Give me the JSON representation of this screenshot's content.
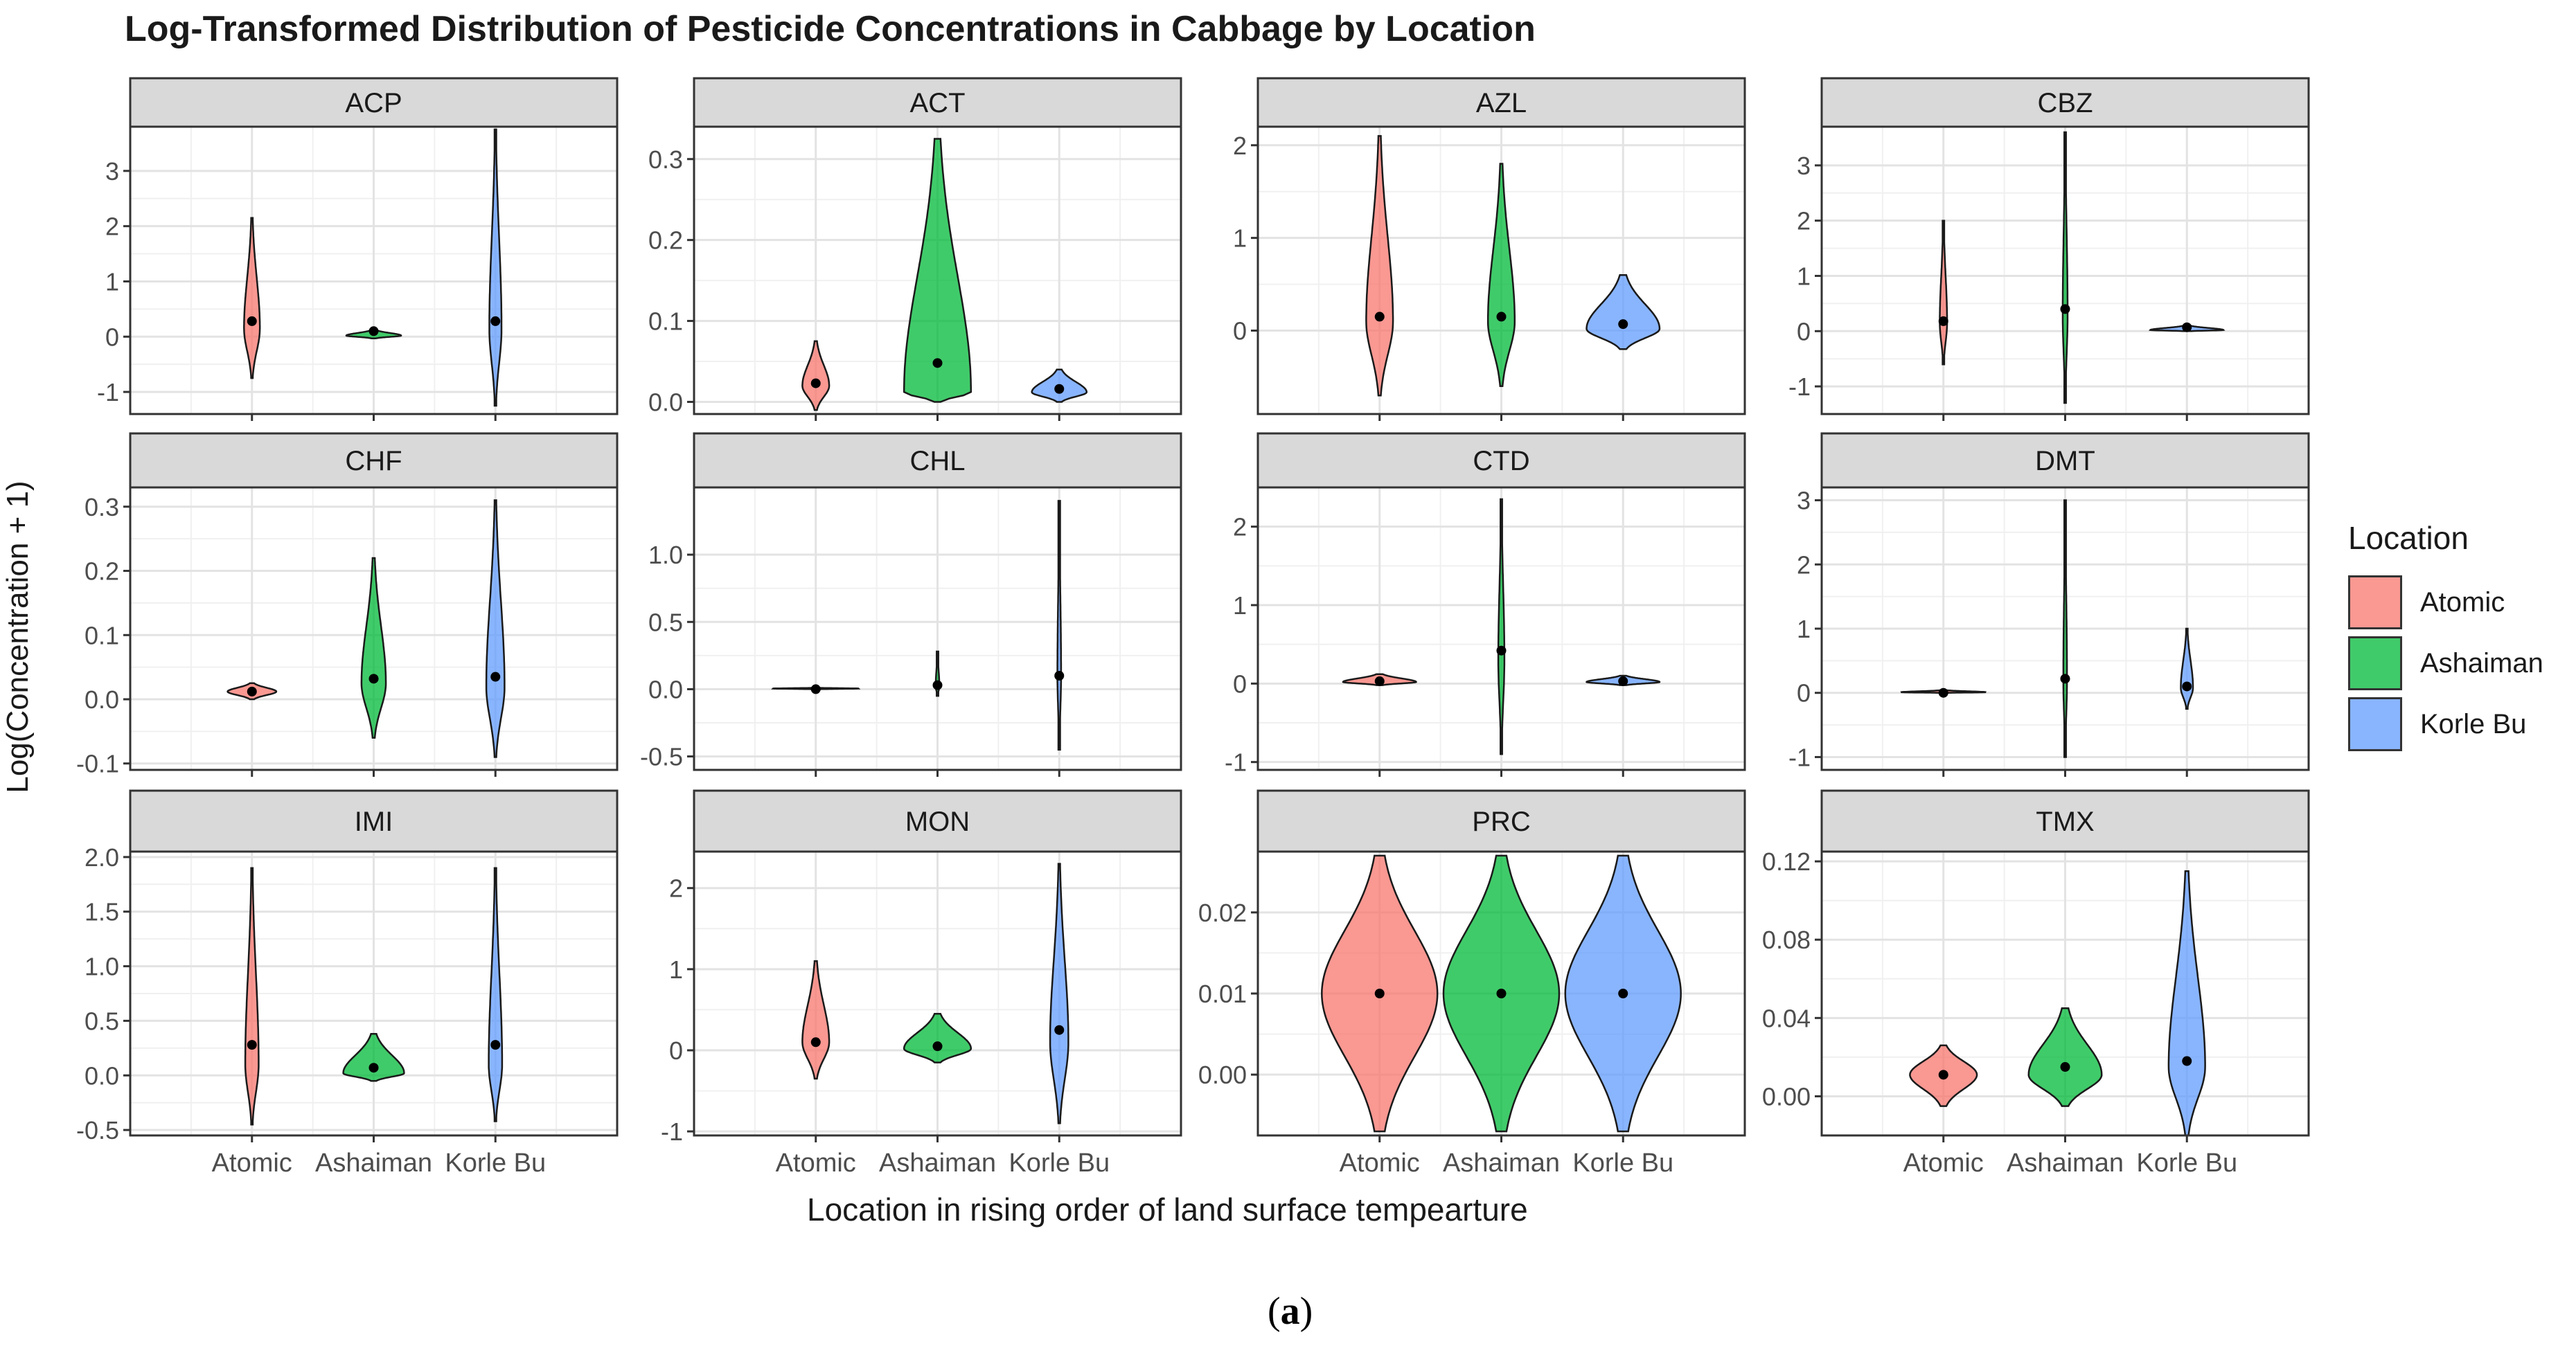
{
  "chart_data": {
    "type": "violin",
    "title": "Log-Transformed Distribution of Pesticide Concentrations in Cabbage by Location",
    "xlabel": "Location in rising order of land surface tempearture",
    "ylabel": "Log(Concentration + 1)",
    "caption": "(a)",
    "caption_letter": "a",
    "legend": {
      "title": "Location",
      "placement": "right",
      "entries": [
        {
          "name": "Atomic",
          "color": "#f8766d"
        },
        {
          "name": "Ashaiman",
          "color": "#00ba38"
        },
        {
          "name": "Korle Bu",
          "color": "#619cff"
        }
      ]
    },
    "categories": [
      "Atomic",
      "Ashaiman",
      "Korle Bu"
    ],
    "panels": [
      {
        "name": "ACP",
        "ylim": [
          -1.4,
          3.8
        ],
        "ticks": [
          -1,
          0,
          1,
          2,
          3
        ],
        "tick_labels": [
          "-1",
          "0",
          "1",
          "2",
          "3"
        ],
        "violins": [
          {
            "location": "Atomic",
            "min": -0.75,
            "max": 2.15,
            "peak": 0.15,
            "median": 0.28,
            "max_width": 0.13
          },
          {
            "location": "Ashaiman",
            "min": -0.03,
            "max": 0.12,
            "peak": 0.02,
            "median": 0.1,
            "max_width": 0.45
          },
          {
            "location": "Korle Bu",
            "min": -1.25,
            "max": 3.75,
            "peak": 0.15,
            "median": 0.28,
            "max_width": 0.1
          }
        ]
      },
      {
        "name": "ACT",
        "ylim": [
          -0.015,
          0.34
        ],
        "ticks": [
          0.0,
          0.1,
          0.2,
          0.3
        ],
        "tick_labels": [
          "0.0",
          "0.1",
          "0.2",
          "0.3"
        ],
        "violins": [
          {
            "location": "Atomic",
            "min": -0.01,
            "max": 0.075,
            "peak": 0.02,
            "median": 0.023,
            "max_width": 0.22
          },
          {
            "location": "Ashaiman",
            "min": 0.0,
            "max": 0.325,
            "peak": 0.012,
            "median": 0.048,
            "max_width": 0.55
          },
          {
            "location": "Korle Bu",
            "min": 0.0,
            "max": 0.04,
            "peak": 0.012,
            "median": 0.016,
            "max_width": 0.45
          }
        ]
      },
      {
        "name": "AZL",
        "ylim": [
          -0.9,
          2.2
        ],
        "ticks": [
          0,
          1,
          2
        ],
        "tick_labels": [
          "0",
          "1",
          "2"
        ],
        "violins": [
          {
            "location": "Atomic",
            "min": -0.7,
            "max": 2.1,
            "peak": 0.1,
            "median": 0.15,
            "max_width": 0.22
          },
          {
            "location": "Ashaiman",
            "min": -0.6,
            "max": 1.8,
            "peak": 0.1,
            "median": 0.15,
            "max_width": 0.22
          },
          {
            "location": "Korle Bu",
            "min": -0.2,
            "max": 0.6,
            "peak": 0.02,
            "median": 0.07,
            "max_width": 0.6
          }
        ]
      },
      {
        "name": "CBZ",
        "ylim": [
          -1.5,
          3.7
        ],
        "ticks": [
          -1,
          0,
          1,
          2,
          3
        ],
        "tick_labels": [
          "-1",
          "0",
          "1",
          "2",
          "3"
        ],
        "violins": [
          {
            "location": "Atomic",
            "min": -0.6,
            "max": 2.0,
            "peak": 0.15,
            "median": 0.18,
            "max_width": 0.06
          },
          {
            "location": "Ashaiman",
            "min": -1.3,
            "max": 3.6,
            "peak": 0.3,
            "median": 0.4,
            "max_width": 0.04
          },
          {
            "location": "Korle Bu",
            "min": 0.0,
            "max": 0.1,
            "peak": 0.02,
            "median": 0.07,
            "max_width": 0.6
          }
        ]
      },
      {
        "name": "CHF",
        "ylim": [
          -0.11,
          0.33
        ],
        "ticks": [
          -0.1,
          0.0,
          0.1,
          0.2,
          0.3
        ],
        "tick_labels": [
          "-0.1",
          "0.0",
          "0.1",
          "0.2",
          "0.3"
        ],
        "violins": [
          {
            "location": "Atomic",
            "min": 0.0,
            "max": 0.025,
            "peak": 0.012,
            "median": 0.012,
            "max_width": 0.4
          },
          {
            "location": "Ashaiman",
            "min": -0.06,
            "max": 0.22,
            "peak": 0.025,
            "median": 0.032,
            "max_width": 0.2
          },
          {
            "location": "Korle Bu",
            "min": -0.09,
            "max": 0.31,
            "peak": 0.02,
            "median": 0.035,
            "max_width": 0.15
          }
        ]
      },
      {
        "name": "CHL",
        "ylim": [
          -0.6,
          1.5
        ],
        "ticks": [
          -0.5,
          0.0,
          0.5,
          1.0
        ],
        "tick_labels": [
          "-0.5",
          "0.0",
          "0.5",
          "1.0"
        ],
        "violins": [
          {
            "location": "Atomic",
            "min": 0.0,
            "max": 0.01,
            "peak": 0.005,
            "median": 0.0,
            "max_width": 0.7
          },
          {
            "location": "Ashaiman",
            "min": -0.05,
            "max": 0.28,
            "peak": 0.02,
            "median": 0.03,
            "max_width": 0.03
          },
          {
            "location": "Korle Bu",
            "min": -0.45,
            "max": 1.4,
            "peak": 0.1,
            "median": 0.1,
            "max_width": 0.03
          }
        ]
      },
      {
        "name": "CTD",
        "ylim": [
          -1.1,
          2.5
        ],
        "ticks": [
          -1,
          0,
          1,
          2
        ],
        "tick_labels": [
          "-1",
          "0",
          "1",
          "2"
        ],
        "violins": [
          {
            "location": "Atomic",
            "min": -0.02,
            "max": 0.12,
            "peak": 0.02,
            "median": 0.03,
            "max_width": 0.6
          },
          {
            "location": "Ashaiman",
            "min": -0.9,
            "max": 2.35,
            "peak": 0.3,
            "median": 0.42,
            "max_width": 0.05
          },
          {
            "location": "Korle Bu",
            "min": -0.02,
            "max": 0.1,
            "peak": 0.02,
            "median": 0.03,
            "max_width": 0.6
          }
        ]
      },
      {
        "name": "DMT",
        "ylim": [
          -1.2,
          3.2
        ],
        "ticks": [
          -1,
          0,
          1,
          2,
          3
        ],
        "tick_labels": [
          "-1",
          "0",
          "1",
          "2",
          "3"
        ],
        "violins": [
          {
            "location": "Atomic",
            "min": 0.0,
            "max": 0.04,
            "peak": 0.01,
            "median": 0.0,
            "max_width": 0.7
          },
          {
            "location": "Ashaiman",
            "min": -1.0,
            "max": 3.0,
            "peak": 0.2,
            "median": 0.22,
            "max_width": 0.03
          },
          {
            "location": "Korle Bu",
            "min": -0.25,
            "max": 1.0,
            "peak": 0.08,
            "median": 0.1,
            "max_width": 0.1
          }
        ]
      },
      {
        "name": "IMI",
        "ylim": [
          -0.55,
          2.05
        ],
        "ticks": [
          -0.5,
          0.0,
          0.5,
          1.0,
          1.5,
          2.0
        ],
        "tick_labels": [
          "-0.5",
          "0.0",
          "0.5",
          "1.0",
          "1.5",
          "2.0"
        ],
        "violins": [
          {
            "location": "Atomic",
            "min": -0.45,
            "max": 1.9,
            "peak": 0.1,
            "median": 0.28,
            "max_width": 0.11
          },
          {
            "location": "Ashaiman",
            "min": -0.05,
            "max": 0.38,
            "peak": 0.02,
            "median": 0.07,
            "max_width": 0.5
          },
          {
            "location": "Korle Bu",
            "min": -0.42,
            "max": 1.9,
            "peak": 0.1,
            "median": 0.28,
            "max_width": 0.11
          }
        ]
      },
      {
        "name": "MON",
        "ylim": [
          -1.05,
          2.45
        ],
        "ticks": [
          -1,
          0,
          1,
          2
        ],
        "tick_labels": [
          "-1",
          "0",
          "1",
          "2"
        ],
        "violins": [
          {
            "location": "Atomic",
            "min": -0.35,
            "max": 1.1,
            "peak": 0.1,
            "median": 0.1,
            "max_width": 0.22
          },
          {
            "location": "Ashaiman",
            "min": -0.15,
            "max": 0.45,
            "peak": 0.02,
            "median": 0.05,
            "max_width": 0.55
          },
          {
            "location": "Korle Bu",
            "min": -0.9,
            "max": 2.3,
            "peak": 0.1,
            "median": 0.25,
            "max_width": 0.15
          }
        ]
      },
      {
        "name": "PRC",
        "ylim": [
          -0.0075,
          0.0275
        ],
        "ticks": [
          0.0,
          0.01,
          0.02
        ],
        "tick_labels": [
          "0.00",
          "0.01",
          "0.02"
        ],
        "violins": [
          {
            "location": "Atomic",
            "min": -0.007,
            "max": 0.027,
            "peak": 0.01,
            "median": 0.01,
            "max_width": 0.95
          },
          {
            "location": "Ashaiman",
            "min": -0.007,
            "max": 0.027,
            "peak": 0.01,
            "median": 0.01,
            "max_width": 0.95
          },
          {
            "location": "Korle Bu",
            "min": -0.007,
            "max": 0.027,
            "peak": 0.01,
            "median": 0.01,
            "max_width": 0.95
          }
        ]
      },
      {
        "name": "TMX",
        "ylim": [
          -0.02,
          0.125
        ],
        "ticks": [
          0.0,
          0.04,
          0.08,
          0.12
        ],
        "tick_labels": [
          "0.00",
          "0.04",
          "0.08",
          "0.12"
        ],
        "violins": [
          {
            "location": "Atomic",
            "min": -0.005,
            "max": 0.026,
            "peak": 0.011,
            "median": 0.011,
            "max_width": 0.55
          },
          {
            "location": "Ashaiman",
            "min": -0.005,
            "max": 0.045,
            "peak": 0.011,
            "median": 0.015,
            "max_width": 0.6
          },
          {
            "location": "Korle Bu",
            "min": -0.02,
            "max": 0.115,
            "peak": 0.015,
            "median": 0.018,
            "max_width": 0.3
          }
        ]
      }
    ]
  }
}
